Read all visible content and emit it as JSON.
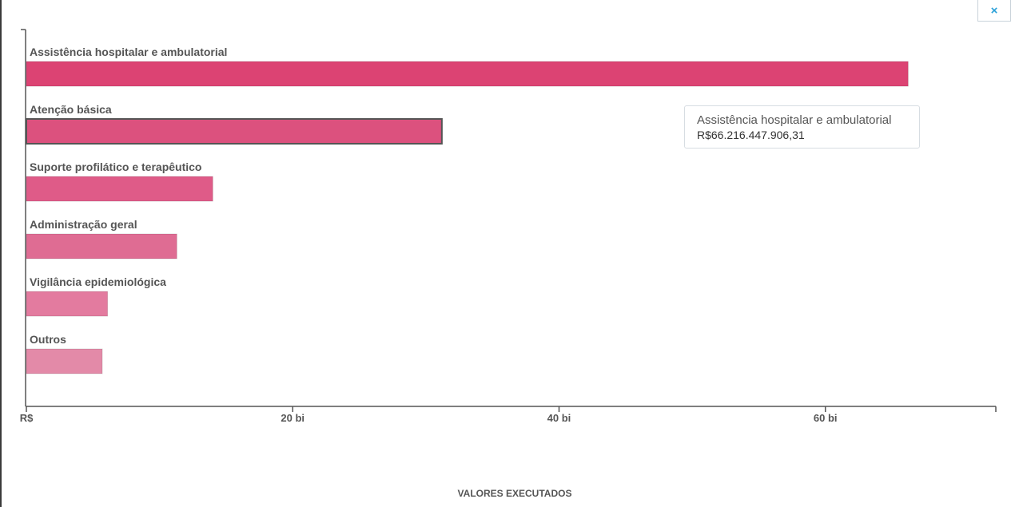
{
  "close_label": "×",
  "chart_data": {
    "type": "bar",
    "orientation": "horizontal",
    "categories": [
      "Assistência hospitalar e ambulatorial",
      "Atenção básica",
      "Suporte profilático e terapêutico",
      "Administração geral",
      "Vigilância epidemiológica",
      "Outros"
    ],
    "values": [
      66216447906.31,
      31200000000,
      14000000000,
      11300000000,
      6100000000,
      5700000000
    ],
    "colors": [
      "#dc4373",
      "#dc517e",
      "#df5b88",
      "#df6c93",
      "#e37b9f",
      "#e38aa8"
    ],
    "xlim": [
      0,
      72800000000
    ],
    "x_ticks": [
      0,
      20000000000,
      40000000000,
      60000000000
    ],
    "x_tick_labels": [
      "R$",
      "20 bi",
      "40 bi",
      "60 bi"
    ],
    "xlabel": "VALORES EXECUTADOS",
    "highlighted_index": 1,
    "grid": false
  },
  "tooltip": {
    "title": "Assistência hospitalar e ambulatorial",
    "value": "R$66.216.447.906,31"
  }
}
